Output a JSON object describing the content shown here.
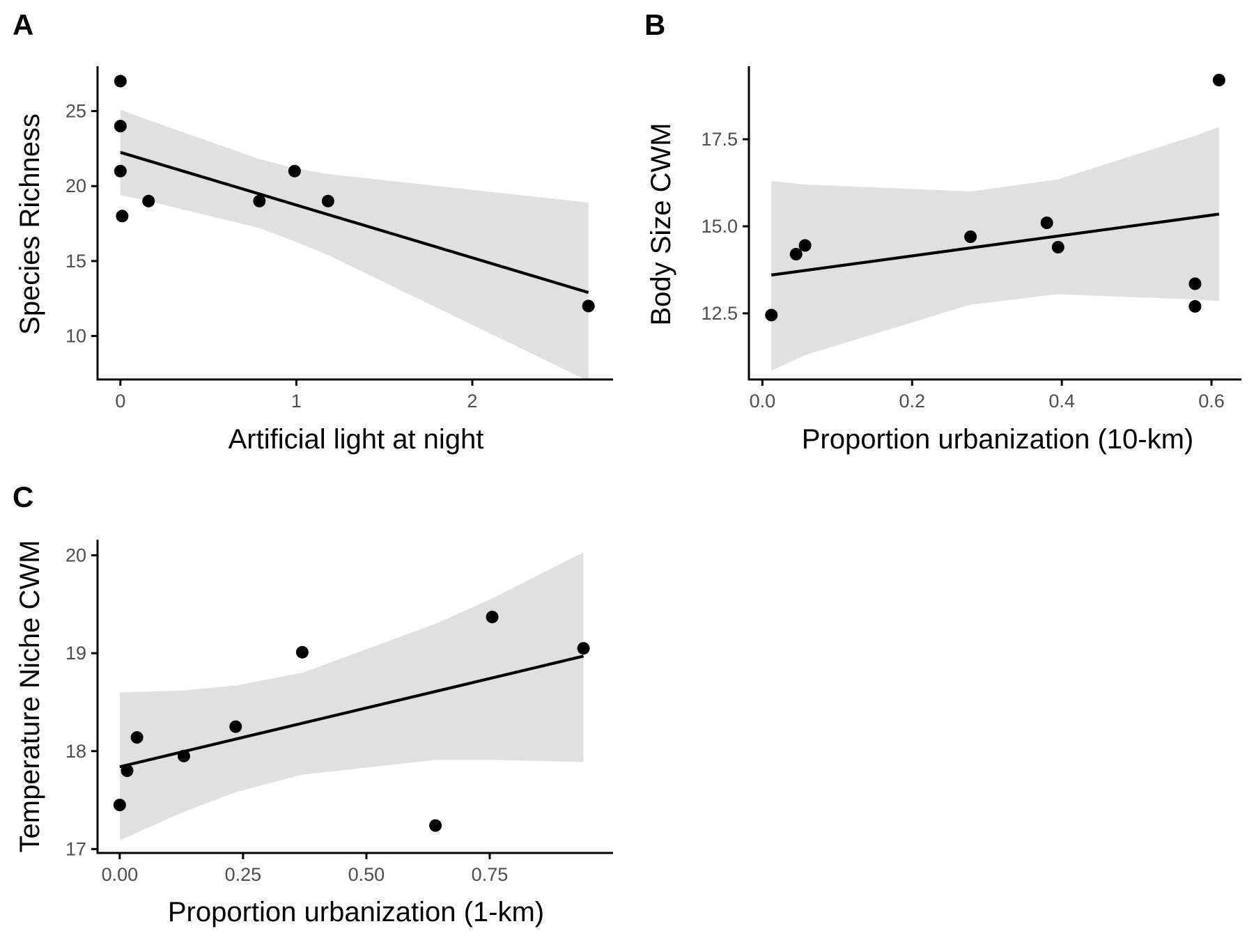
{
  "colors": {
    "ribbon": "#e0e0e0",
    "line": "#000000",
    "point": "#000000",
    "axis": "#000000",
    "tick_text": "#4d4d4d"
  },
  "chart_data": [
    {
      "id": "A",
      "type": "scatter",
      "panel_label": "A",
      "xlabel": "Artificial light at night",
      "ylabel": "Species Richness",
      "xlim": [
        -0.13,
        2.8
      ],
      "ylim": [
        7.1,
        28.0
      ],
      "xticks": [
        0,
        1,
        2
      ],
      "xtick_labels": [
        "0",
        "1",
        "2"
      ],
      "yticks": [
        10,
        15,
        20,
        25
      ],
      "ytick_labels": [
        "10",
        "15",
        "20",
        "25"
      ],
      "points": [
        {
          "x": 0.0,
          "y": 27
        },
        {
          "x": 0.0,
          "y": 24
        },
        {
          "x": 0.0,
          "y": 21
        },
        {
          "x": 0.01,
          "y": 18
        },
        {
          "x": 0.16,
          "y": 19
        },
        {
          "x": 0.79,
          "y": 19
        },
        {
          "x": 0.99,
          "y": 21
        },
        {
          "x": 1.18,
          "y": 19
        },
        {
          "x": 2.66,
          "y": 12
        }
      ],
      "trend": {
        "x": [
          0.0,
          2.66
        ],
        "y": [
          22.25,
          12.9
        ]
      },
      "band": {
        "x": [
          0.0,
          0.16,
          0.79,
          0.99,
          1.18,
          2.66
        ],
        "lower": [
          19.4,
          19.0,
          17.2,
          16.3,
          15.4,
          7.0
        ],
        "upper": [
          25.1,
          24.4,
          21.8,
          21.2,
          20.8,
          18.9
        ]
      }
    },
    {
      "id": "B",
      "type": "scatter",
      "panel_label": "B",
      "xlabel": "Proportion urbanization (10-km)",
      "ylabel": "Body Size CWM",
      "xlim": [
        -0.018,
        0.64
      ],
      "ylim": [
        10.6,
        19.6
      ],
      "xticks": [
        0.0,
        0.2,
        0.4,
        0.6
      ],
      "xtick_labels": [
        "0.0",
        "0.2",
        "0.4",
        "0.6"
      ],
      "yticks": [
        12.5,
        15.0,
        17.5
      ],
      "ytick_labels": [
        "12.5",
        "15.0",
        "17.5"
      ],
      "points": [
        {
          "x": 0.012,
          "y": 12.45
        },
        {
          "x": 0.045,
          "y": 14.2
        },
        {
          "x": 0.057,
          "y": 14.45
        },
        {
          "x": 0.278,
          "y": 14.7
        },
        {
          "x": 0.38,
          "y": 15.1
        },
        {
          "x": 0.395,
          "y": 14.4
        },
        {
          "x": 0.578,
          "y": 13.35
        },
        {
          "x": 0.578,
          "y": 12.7
        },
        {
          "x": 0.61,
          "y": 19.2
        }
      ],
      "trend": {
        "x": [
          0.012,
          0.61
        ],
        "y": [
          13.6,
          15.35
        ]
      },
      "band": {
        "x": [
          0.012,
          0.057,
          0.278,
          0.395,
          0.578,
          0.61
        ],
        "lower": [
          10.85,
          11.3,
          12.75,
          13.05,
          12.9,
          12.85
        ],
        "upper": [
          16.3,
          16.2,
          16.0,
          16.35,
          17.6,
          17.85
        ]
      }
    },
    {
      "id": "C",
      "type": "scatter",
      "panel_label": "C",
      "xlabel": "Proportion urbanization (1-km)",
      "ylabel": "Temperature Niche CWM",
      "xlim": [
        -0.045,
        1.0
      ],
      "ylim": [
        16.96,
        20.16
      ],
      "xticks": [
        0.0,
        0.25,
        0.5,
        0.75
      ],
      "xtick_labels": [
        "0.00",
        "0.25",
        "0.50",
        "0.75"
      ],
      "yticks": [
        17,
        18,
        19,
        20
      ],
      "ytick_labels": [
        "17",
        "18",
        "19",
        "20"
      ],
      "points": [
        {
          "x": 0.0,
          "y": 17.45
        },
        {
          "x": 0.015,
          "y": 17.8
        },
        {
          "x": 0.035,
          "y": 18.14
        },
        {
          "x": 0.13,
          "y": 17.95
        },
        {
          "x": 0.235,
          "y": 18.25
        },
        {
          "x": 0.37,
          "y": 19.01
        },
        {
          "x": 0.64,
          "y": 17.24
        },
        {
          "x": 0.755,
          "y": 19.37
        },
        {
          "x": 0.94,
          "y": 19.05
        }
      ],
      "trend": {
        "x": [
          0.0,
          0.94
        ],
        "y": [
          17.84,
          18.97
        ]
      },
      "band": {
        "x": [
          0.0,
          0.13,
          0.235,
          0.37,
          0.64,
          0.755,
          0.94
        ],
        "lower": [
          17.09,
          17.38,
          17.58,
          17.76,
          17.91,
          17.91,
          17.89
        ],
        "upper": [
          18.6,
          18.62,
          18.67,
          18.8,
          19.3,
          19.56,
          20.03
        ]
      }
    }
  ]
}
